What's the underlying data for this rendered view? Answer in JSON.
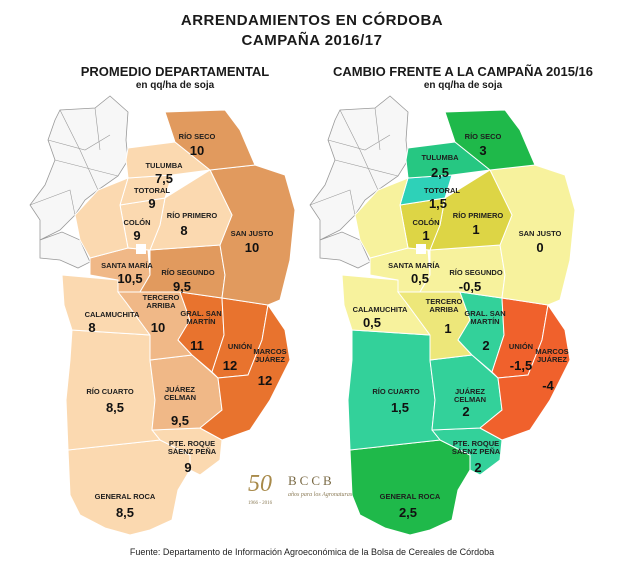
{
  "title_line1": "ARRENDAMIENTOS EN CÓRDOBA",
  "title_line2": "CAMPAÑA 2016/17",
  "left_map": {
    "heading": "PROMEDIO DEPARTAMENTAL",
    "unit": "en qq/ha de soja",
    "departments": [
      {
        "name": "RÍO SECO",
        "value": "10"
      },
      {
        "name": "TULUMBA",
        "value": "7,5"
      },
      {
        "name": "TOTORAL",
        "value": "9"
      },
      {
        "name": "COLÓN",
        "value": "9"
      },
      {
        "name": "RÍO PRIMERO",
        "value": "8"
      },
      {
        "name": "SAN JUSTO",
        "value": "10"
      },
      {
        "name": "SANTA MARÍA",
        "value": "10,5"
      },
      {
        "name": "RÍO SEGUNDO",
        "value": "9,5"
      },
      {
        "name": "CALAMUCHITA",
        "value": "8"
      },
      {
        "name": "TERCERO ARRIBA",
        "value": "10"
      },
      {
        "name": "GRAL. SAN MARTÍN",
        "value": "11"
      },
      {
        "name": "UNIÓN",
        "value": "12"
      },
      {
        "name": "MARCOS JUÁREZ",
        "value": "12"
      },
      {
        "name": "RÍO CUARTO",
        "value": "8,5"
      },
      {
        "name": "JUÁREZ CELMAN",
        "value": "9,5"
      },
      {
        "name": "PTE. ROQUE SÁENZ PEÑA",
        "value": "9"
      },
      {
        "name": "GENERAL ROCA",
        "value": "8,5"
      }
    ]
  },
  "right_map": {
    "heading": "CAMBIO FRENTE A LA CAMPAÑA 2015/16",
    "unit": "en qq/ha de soja",
    "departments": [
      {
        "name": "RÍO SECO",
        "value": "3"
      },
      {
        "name": "TULUMBA",
        "value": "2,5"
      },
      {
        "name": "TOTORAL",
        "value": "1,5"
      },
      {
        "name": "COLÓN",
        "value": "1"
      },
      {
        "name": "RÍO PRIMERO",
        "value": "1"
      },
      {
        "name": "SAN JUSTO",
        "value": "0"
      },
      {
        "name": "SANTA MARÍA",
        "value": "0,5"
      },
      {
        "name": "RÍO SEGUNDO",
        "value": "-0,5"
      },
      {
        "name": "CALAMUCHITA",
        "value": "0,5"
      },
      {
        "name": "TERCERO ARRIBA",
        "value": ""
      },
      {
        "name": "GRAL. SAN MARTÍN",
        "value": "2"
      },
      {
        "name": "UNIÓN",
        "value": "-1,5"
      },
      {
        "name": "MARCOS JUÁREZ",
        "value": "-4"
      },
      {
        "name": "RÍO CUARTO",
        "value": "1,5"
      },
      {
        "name": "JUÁREZ CELMAN",
        "value": "2"
      },
      {
        "name": "PTE. ROQUE SÁENZ PEÑA",
        "value": "2"
      },
      {
        "name": "GENERAL ROCA",
        "value": "2,5"
      },
      {
        "name": "",
        "value": "1"
      }
    ]
  },
  "logo": {
    "number": "50",
    "org": "BCCB",
    "tagline": "años para los Agronaturas",
    "years": "1966 - 2016"
  },
  "source": "Fuente: Departamento de Información Agroeconómica de la Bolsa de Cereales de Córdoba",
  "colors": {
    "left_light": "#fbd9b0",
    "left_mid": "#f0b887",
    "left_dark": "#e19a5e",
    "left_top": "#e8732e",
    "right_red": "#f0612c",
    "right_yellow": "#f7f29d",
    "right_yellow_mid": "#ede77a",
    "right_yellow_dark": "#ddd545",
    "right_green_light": "#33d19a",
    "right_green_mid": "#26c782",
    "right_green_dark": "#1fb94a",
    "right_teal": "#2ed1b8",
    "outline": "#ffffff",
    "outside": "#f5f5f5"
  }
}
